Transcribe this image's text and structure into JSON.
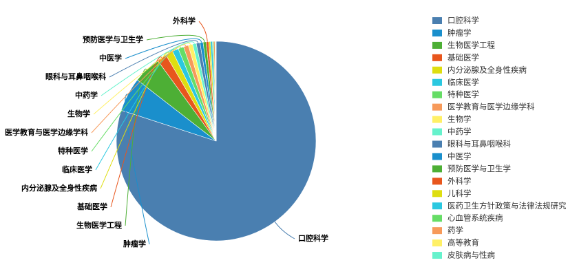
{
  "chart_data": {
    "type": "pie",
    "categories": [
      "口腔科学",
      "肿瘤学",
      "生物医学工程",
      "基础医学",
      "内分泌腺及全身性疾病",
      "临床医学",
      "特种医学",
      "医学教育与医学边缘学科",
      "生物学",
      "中药学",
      "眼科与耳鼻咽喉科",
      "中医学",
      "预防医学与卫生学",
      "外科学",
      "儿科学",
      "医药卫生方针政策与法律法规研究",
      "心血管系统疾病",
      "药学",
      "高等教育",
      "皮肤病与性病"
    ],
    "values": [
      80,
      5.5,
      4.5,
      1.6,
      1.2,
      1.0,
      0.9,
      0.8,
      0.7,
      0.6,
      0.6,
      0.5,
      0.5,
      0.4,
      0.3,
      0.3,
      0.2,
      0.2,
      0.1,
      0.1
    ],
    "colors": [
      "#4a7fb0",
      "#1a8fcc",
      "#4daf35",
      "#e8561d",
      "#dede10",
      "#2bc8e0",
      "#66dd66",
      "#f79a5a",
      "#fff066",
      "#66f2cc",
      "#4a7fb0",
      "#1a8fcc",
      "#4daf35",
      "#e8561d",
      "#dede10",
      "#2bc8e0",
      "#66dd66",
      "#f79a5a",
      "#fff066",
      "#66f2cc"
    ],
    "legend": "right"
  }
}
